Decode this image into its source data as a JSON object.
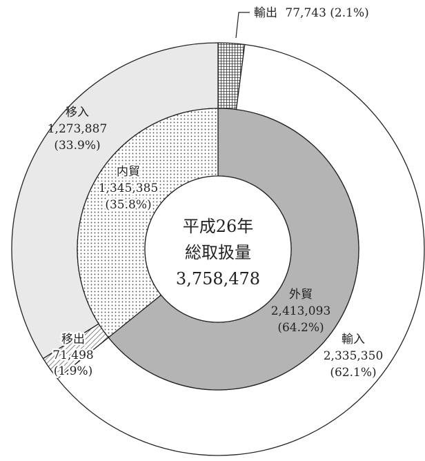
{
  "chart_data": {
    "type": "pie",
    "subtype": "nested-donut",
    "center_label": [
      "平成26年",
      "総取扱量",
      "3,758,478"
    ],
    "inner_ring": [
      {
        "label": "外貿",
        "value_text": "2,413,093",
        "percent_text": "(64.2%)",
        "value": 2413093,
        "percent": 64.2,
        "fill": "#b4b4b4",
        "pattern": "solid"
      },
      {
        "label": "内貿",
        "value_text": "1,345,385",
        "percent_text": "(35.8%)",
        "value": 1345385,
        "percent": 35.8,
        "fill": "#ffffff",
        "pattern": "dots"
      }
    ],
    "outer_ring": [
      {
        "label": "輸出",
        "value_text": "77,743",
        "percent_text": "(2.1%)",
        "value": 77743,
        "percent": 2.1,
        "fill": "#ffffff",
        "pattern": "grid"
      },
      {
        "label": "輸入",
        "value_text": "2,335,350",
        "percent_text": "(62.1%)",
        "value": 2335350,
        "percent": 62.1,
        "fill": "#ffffff",
        "pattern": "solid"
      },
      {
        "label": "移出",
        "value_text": "71,498",
        "percent_text": "(1.9%)",
        "value": 71498,
        "percent": 1.9,
        "fill": "#ffffff",
        "pattern": "hatch"
      },
      {
        "label": "移入",
        "value_text": "1,273,887",
        "percent_text": "(33.9%)",
        "value": 1273887,
        "percent": 33.9,
        "fill": "#e9e9e9",
        "pattern": "solid"
      }
    ],
    "annotation": {
      "label": "輸出",
      "value_text": "77,743",
      "percent_text": "(2.1%)"
    }
  }
}
